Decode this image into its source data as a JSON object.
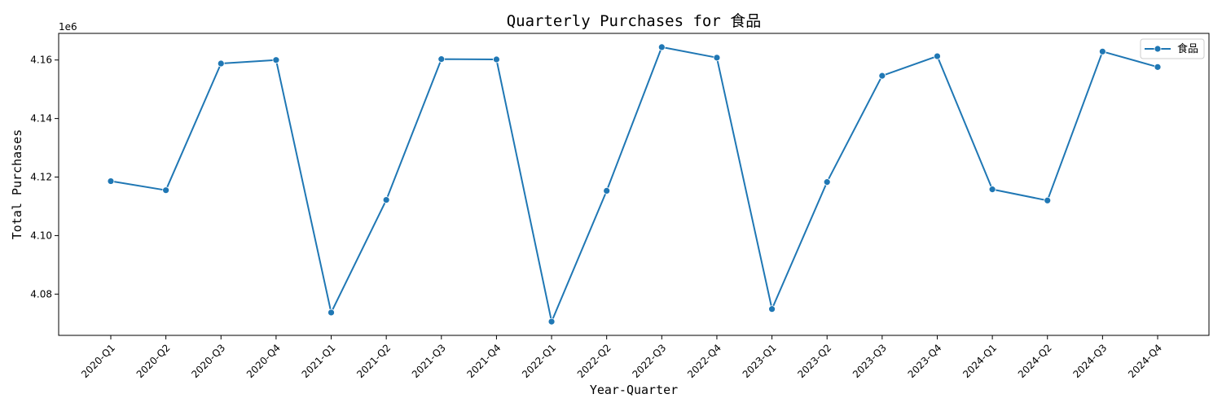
{
  "chart_data": {
    "type": "line",
    "title": "Quarterly Purchases for 食品",
    "xlabel": "Year-Quarter",
    "ylabel": "Total Purchases",
    "y_offset_label": "1e6",
    "categories": [
      "2020-Q1",
      "2020-Q2",
      "2020-Q3",
      "2020-Q4",
      "2021-Q1",
      "2021-Q2",
      "2021-Q3",
      "2021-Q4",
      "2022-Q1",
      "2022-Q2",
      "2022-Q3",
      "2022-Q4",
      "2023-Q1",
      "2023-Q2",
      "2023-Q3",
      "2023-Q4",
      "2024-Q1",
      "2024-Q2",
      "2024-Q3",
      "2024-Q4"
    ],
    "series": [
      {
        "name": "食品",
        "color": "#1f77b4",
        "marker": "circle",
        "values": [
          4118600,
          4115500,
          4158800,
          4160000,
          4073700,
          4112200,
          4160300,
          4160200,
          4070600,
          4115300,
          4164400,
          4160800,
          4074900,
          4118300,
          4154600,
          4161300,
          4115800,
          4112000,
          4162900,
          4157600
        ]
      }
    ],
    "yticks": [
      4080000,
      4100000,
      4120000,
      4140000,
      4160000
    ],
    "ytick_labels": [
      "4.08",
      "4.10",
      "4.12",
      "4.14",
      "4.16"
    ],
    "ylim": [
      4065900,
      4169100
    ],
    "grid": false,
    "legend_position": "top-right"
  }
}
